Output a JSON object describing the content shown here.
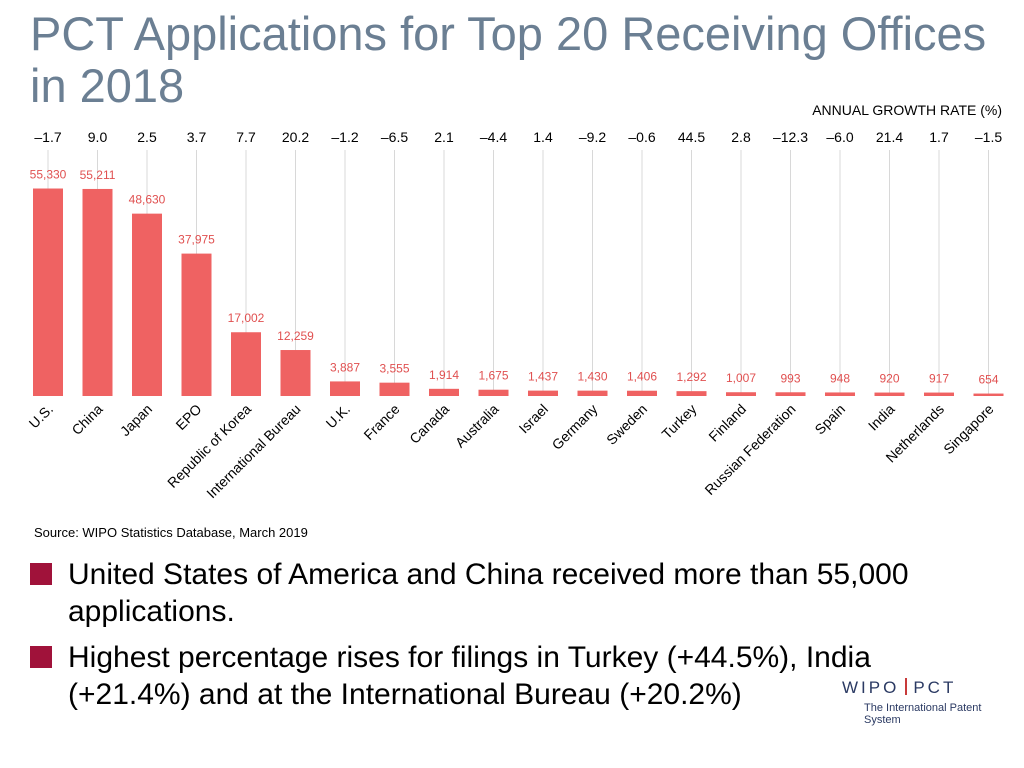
{
  "title": "PCT Applications for Top 20 Receiving Offices in 2018",
  "growth_header": "ANNUAL GROWTH RATE (%)",
  "source": "Source:  WIPO Statistics Database, March 2019",
  "bullets": [
    "United States of America and China received more than 55,000 applications.",
    "Highest percentage rises for filings in Turkey (+44.5%), India (+21.4%) and at the International Bureau (+20.2%)"
  ],
  "logo": {
    "main_left": "WIPO",
    "main_right": "PCT",
    "sub": "The International Patent System"
  },
  "colors": {
    "bar": "#ef6262",
    "value_label": "#e05050",
    "title": "#6b7f93",
    "bullet": "#a0123a",
    "gridline": "#d8d8d8"
  },
  "chart_data": {
    "type": "bar",
    "title": "PCT Applications for Top 20 Receiving Offices in 2018",
    "xlabel": "",
    "ylabel": "",
    "ylim": [
      0,
      56000
    ],
    "grid": false,
    "categories": [
      "U.S.",
      "China",
      "Japan",
      "EPO",
      "Republic of Korea",
      "International Bureau",
      "U.K.",
      "France",
      "Canada",
      "Australia",
      "Israel",
      "Germany",
      "Sweden",
      "Turkey",
      "Finland",
      "Russian Federation",
      "Spain",
      "India",
      "Netherlands",
      "Singapore"
    ],
    "values": [
      55330,
      55211,
      48630,
      37975,
      17002,
      12259,
      3887,
      3555,
      1914,
      1675,
      1437,
      1430,
      1406,
      1292,
      1007,
      993,
      948,
      920,
      917,
      654
    ],
    "value_labels": [
      "55,330",
      "55,211",
      "48,630",
      "37,975",
      "17,002",
      "12,259",
      "3,887",
      "3,555",
      "1,914",
      "1,675",
      "1,437",
      "1,430",
      "1,406",
      "1,292",
      "1,007",
      "993",
      "948",
      "920",
      "917",
      "654"
    ],
    "growth_rate_labels": [
      "–1.7",
      "9.0",
      "2.5",
      "3.7",
      "7.7",
      "20.2",
      "–1.2",
      "–6.5",
      "2.1",
      "–4.4",
      "1.4",
      "–9.2",
      "–0.6",
      "44.5",
      "2.8",
      "–12.3",
      "–6.0",
      "21.4",
      "1.7",
      "–1.5"
    ]
  }
}
